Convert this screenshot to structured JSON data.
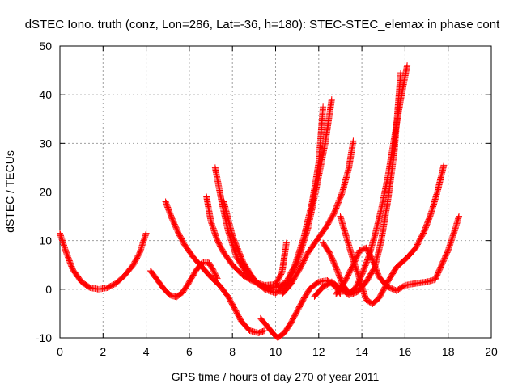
{
  "chart_data": {
    "type": "scatter",
    "title": "dSTEC Iono. truth (conz, Lon=286, Lat=-36, h=180): STEC-STEC_elemax in phase cont",
    "xlabel": "GPS time / hours of day 270 of year 2011",
    "ylabel": "dSTEC  / TECUs",
    "xlim": [
      0,
      20
    ],
    "ylim": [
      -10,
      50
    ],
    "x_ticks": [
      "0",
      "2",
      "4",
      "6",
      "8",
      "10",
      "12",
      "14",
      "16",
      "18",
      "20"
    ],
    "y_ticks": [
      "-10",
      "0",
      "10",
      "20",
      "30",
      "40",
      "50"
    ],
    "grid": true,
    "marker": "+",
    "color": "#ff0000",
    "series": [
      {
        "points": [
          [
            0.0,
            11.5
          ],
          [
            0.3,
            7.5
          ],
          [
            0.6,
            4.0
          ],
          [
            1.0,
            1.5
          ],
          [
            1.4,
            0.3
          ],
          [
            1.8,
            0.0
          ],
          [
            2.2,
            0.3
          ],
          [
            2.6,
            1.2
          ],
          [
            3.0,
            2.8
          ],
          [
            3.4,
            5.0
          ],
          [
            3.7,
            7.5
          ],
          [
            4.0,
            11.5
          ]
        ]
      },
      {
        "points": [
          [
            4.2,
            3.8
          ],
          [
            4.5,
            2.0
          ],
          [
            4.8,
            0.2
          ],
          [
            5.1,
            -1.2
          ],
          [
            5.4,
            -1.6
          ],
          [
            5.7,
            -0.6
          ],
          [
            6.0,
            1.5
          ],
          [
            6.3,
            3.8
          ],
          [
            6.6,
            5.5
          ],
          [
            6.9,
            5.5
          ],
          [
            7.1,
            4.0
          ],
          [
            7.3,
            2.2
          ]
        ]
      },
      {
        "points": [
          [
            4.9,
            18.0
          ],
          [
            5.2,
            14.5
          ],
          [
            5.5,
            11.5
          ],
          [
            5.8,
            9.0
          ],
          [
            6.2,
            6.5
          ],
          [
            6.6,
            4.5
          ],
          [
            7.0,
            2.5
          ],
          [
            7.4,
            0.8
          ],
          [
            7.8,
            -1.5
          ],
          [
            8.1,
            -4.0
          ],
          [
            8.4,
            -6.5
          ],
          [
            8.8,
            -8.5
          ],
          [
            9.2,
            -9.0
          ],
          [
            9.5,
            -8.5
          ]
        ]
      },
      {
        "points": [
          [
            9.3,
            -6.0
          ],
          [
            9.6,
            -7.5
          ],
          [
            9.9,
            -9.2
          ],
          [
            10.1,
            -10.0
          ],
          [
            10.4,
            -9.0
          ],
          [
            10.7,
            -7.0
          ],
          [
            11.0,
            -4.5
          ],
          [
            11.3,
            -2.0
          ],
          [
            11.6,
            0.2
          ],
          [
            12.0,
            1.5
          ],
          [
            12.4,
            1.8
          ],
          [
            12.8,
            0.5
          ],
          [
            13.0,
            -1.0
          ]
        ]
      },
      {
        "points": [
          [
            6.8,
            19.0
          ],
          [
            7.0,
            14.0
          ],
          [
            7.3,
            10.0
          ],
          [
            7.6,
            7.5
          ],
          [
            8.0,
            5.0
          ],
          [
            8.5,
            2.8
          ],
          [
            9.0,
            1.5
          ],
          [
            9.5,
            0.8
          ],
          [
            10.0,
            1.0
          ],
          [
            10.3,
            3.5
          ],
          [
            10.5,
            9.5
          ]
        ]
      },
      {
        "points": [
          [
            7.2,
            25.0
          ],
          [
            7.5,
            18.0
          ],
          [
            7.8,
            12.0
          ],
          [
            8.2,
            6.5
          ],
          [
            8.7,
            3.0
          ],
          [
            9.2,
            1.0
          ],
          [
            9.7,
            0.2
          ],
          [
            10.1,
            0.5
          ],
          [
            10.5,
            1.5
          ],
          [
            10.9,
            5.0
          ],
          [
            11.3,
            10.5
          ],
          [
            11.7,
            18.0
          ],
          [
            12.0,
            26.0
          ],
          [
            12.2,
            37.5
          ]
        ]
      },
      {
        "points": [
          [
            7.6,
            18.0
          ],
          [
            8.0,
            11.0
          ],
          [
            8.5,
            5.5
          ],
          [
            9.0,
            2.0
          ],
          [
            9.5,
            0.0
          ],
          [
            10.0,
            -0.8
          ],
          [
            10.5,
            0.8
          ],
          [
            11.0,
            5.5
          ],
          [
            11.5,
            12.5
          ],
          [
            11.9,
            21.0
          ],
          [
            12.3,
            30.0
          ],
          [
            12.6,
            39.0
          ]
        ]
      },
      {
        "points": [
          [
            10.3,
            -1.0
          ],
          [
            10.7,
            1.0
          ],
          [
            11.1,
            4.0
          ],
          [
            11.5,
            7.5
          ],
          [
            11.9,
            10.0
          ],
          [
            12.3,
            12.5
          ],
          [
            12.7,
            15.5
          ],
          [
            13.1,
            20.0
          ],
          [
            13.4,
            25.0
          ],
          [
            13.6,
            30.5
          ]
        ]
      },
      {
        "points": [
          [
            12.2,
            9.5
          ],
          [
            12.5,
            7.5
          ],
          [
            12.8,
            4.5
          ],
          [
            13.1,
            1.0
          ],
          [
            13.4,
            -0.8
          ],
          [
            13.7,
            0.2
          ],
          [
            14.0,
            3.0
          ],
          [
            14.3,
            6.5
          ],
          [
            14.6,
            11.0
          ],
          [
            14.9,
            16.5
          ],
          [
            15.2,
            23.0
          ],
          [
            15.5,
            31.0
          ],
          [
            15.8,
            39.0
          ],
          [
            16.1,
            46.0
          ]
        ]
      },
      {
        "points": [
          [
            11.8,
            -1.5
          ],
          [
            12.2,
            0.5
          ],
          [
            12.6,
            1.5
          ],
          [
            13.0,
            0.2
          ],
          [
            13.4,
            -1.2
          ],
          [
            13.8,
            -0.5
          ],
          [
            14.2,
            1.5
          ],
          [
            14.6,
            4.5
          ],
          [
            14.9,
            10.0
          ],
          [
            15.2,
            18.0
          ],
          [
            15.5,
            28.0
          ],
          [
            15.8,
            44.5
          ]
        ]
      },
      {
        "points": [
          [
            12.8,
            -1.0
          ],
          [
            13.2,
            1.5
          ],
          [
            13.6,
            5.0
          ],
          [
            13.9,
            8.0
          ],
          [
            14.2,
            8.5
          ],
          [
            14.5,
            6.0
          ],
          [
            14.8,
            2.5
          ],
          [
            15.2,
            0.5
          ],
          [
            15.6,
            -0.3
          ],
          [
            16.0,
            0.8
          ],
          [
            16.5,
            1.2
          ],
          [
            17.0,
            1.5
          ],
          [
            17.4,
            2.0
          ],
          [
            17.7,
            5.0
          ],
          [
            18.0,
            8.0
          ],
          [
            18.3,
            12.0
          ],
          [
            18.5,
            15.0
          ]
        ]
      },
      {
        "points": [
          [
            13.0,
            15.0
          ],
          [
            13.3,
            10.5
          ],
          [
            13.6,
            6.0
          ],
          [
            13.9,
            2.0
          ],
          [
            14.2,
            -2.2
          ],
          [
            14.5,
            -3.0
          ],
          [
            14.8,
            -1.8
          ],
          [
            15.2,
            1.5
          ],
          [
            15.6,
            4.5
          ],
          [
            16.1,
            6.5
          ],
          [
            16.5,
            8.5
          ],
          [
            16.9,
            12.0
          ],
          [
            17.2,
            15.5
          ],
          [
            17.5,
            20.0
          ],
          [
            17.8,
            25.5
          ]
        ]
      }
    ]
  }
}
